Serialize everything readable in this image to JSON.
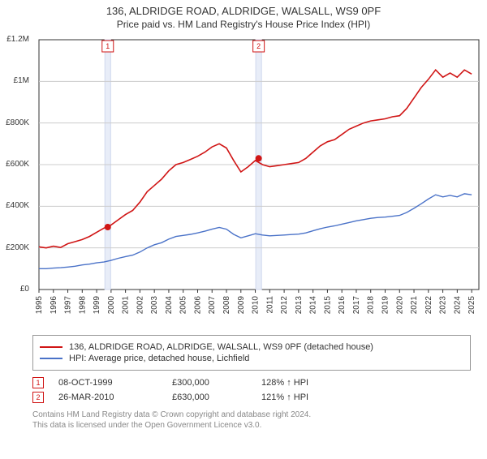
{
  "title": "136, ALDRIDGE ROAD, ALDRIDGE, WALSALL, WS9 0PF",
  "subtitle": "Price paid vs. HM Land Registry's House Price Index (HPI)",
  "chart": {
    "type": "line",
    "background_color": "#ffffff",
    "grid_color": "#cccccc",
    "x": {
      "min": 1995.0,
      "max": 2025.5,
      "ticks": [
        1995,
        1996,
        1997,
        1998,
        1999,
        2000,
        2001,
        2002,
        2003,
        2004,
        2005,
        2006,
        2007,
        2008,
        2009,
        2010,
        2011,
        2012,
        2013,
        2014,
        2015,
        2016,
        2017,
        2018,
        2019,
        2020,
        2021,
        2022,
        2023,
        2024,
        2025
      ],
      "tick_rotation": -90,
      "tick_fontsize": 10
    },
    "y": {
      "min": 0,
      "max": 1200000,
      "ticks": [
        0,
        200000,
        400000,
        600000,
        800000,
        1000000,
        1200000
      ],
      "tick_labels": [
        "£0",
        "£200K",
        "£400K",
        "£600K",
        "£800K",
        "£1M",
        "£1.2M"
      ],
      "tick_fontsize": 10
    },
    "vbands": [
      {
        "x": 1999.77,
        "color": "#e8edf8",
        "border": "#d0d8ee",
        "width_years": 0.4
      },
      {
        "x": 2010.23,
        "color": "#e8edf8",
        "border": "#d0d8ee",
        "width_years": 0.4
      }
    ],
    "marker_badges": [
      {
        "n": "1",
        "x": 1999.77,
        "y_top": true,
        "color": "#d01515"
      },
      {
        "n": "2",
        "x": 2010.23,
        "y_top": true,
        "color": "#d01515"
      }
    ],
    "sale_points": [
      {
        "x": 1999.77,
        "y": 300000,
        "color": "#d01515"
      },
      {
        "x": 2010.23,
        "y": 630000,
        "color": "#d01515"
      }
    ],
    "series": [
      {
        "name": "price_paid",
        "color": "#d01515",
        "line_width": 1.6,
        "data": [
          [
            1995.0,
            205000
          ],
          [
            1995.5,
            200000
          ],
          [
            1996.0,
            208000
          ],
          [
            1996.5,
            202000
          ],
          [
            1997.0,
            220000
          ],
          [
            1997.5,
            230000
          ],
          [
            1998.0,
            240000
          ],
          [
            1998.5,
            255000
          ],
          [
            1999.0,
            275000
          ],
          [
            1999.5,
            295000
          ],
          [
            2000.0,
            310000
          ],
          [
            2000.5,
            335000
          ],
          [
            2001.0,
            360000
          ],
          [
            2001.5,
            380000
          ],
          [
            2002.0,
            420000
          ],
          [
            2002.5,
            470000
          ],
          [
            2003.0,
            500000
          ],
          [
            2003.5,
            530000
          ],
          [
            2004.0,
            570000
          ],
          [
            2004.5,
            600000
          ],
          [
            2005.0,
            610000
          ],
          [
            2005.5,
            625000
          ],
          [
            2006.0,
            640000
          ],
          [
            2006.5,
            660000
          ],
          [
            2007.0,
            685000
          ],
          [
            2007.5,
            700000
          ],
          [
            2008.0,
            680000
          ],
          [
            2008.5,
            620000
          ],
          [
            2009.0,
            565000
          ],
          [
            2009.5,
            590000
          ],
          [
            2010.0,
            620000
          ],
          [
            2010.5,
            600000
          ],
          [
            2011.0,
            590000
          ],
          [
            2011.5,
            595000
          ],
          [
            2012.0,
            600000
          ],
          [
            2012.5,
            605000
          ],
          [
            2013.0,
            610000
          ],
          [
            2013.5,
            630000
          ],
          [
            2014.0,
            660000
          ],
          [
            2014.5,
            690000
          ],
          [
            2015.0,
            710000
          ],
          [
            2015.5,
            720000
          ],
          [
            2016.0,
            745000
          ],
          [
            2016.5,
            770000
          ],
          [
            2017.0,
            785000
          ],
          [
            2017.5,
            800000
          ],
          [
            2018.0,
            810000
          ],
          [
            2018.5,
            815000
          ],
          [
            2019.0,
            820000
          ],
          [
            2019.5,
            830000
          ],
          [
            2020.0,
            835000
          ],
          [
            2020.5,
            870000
          ],
          [
            2021.0,
            920000
          ],
          [
            2021.5,
            970000
          ],
          [
            2022.0,
            1010000
          ],
          [
            2022.5,
            1055000
          ],
          [
            2023.0,
            1020000
          ],
          [
            2023.5,
            1040000
          ],
          [
            2024.0,
            1020000
          ],
          [
            2024.5,
            1055000
          ],
          [
            2025.0,
            1035000
          ]
        ]
      },
      {
        "name": "hpi",
        "color": "#4a72c8",
        "line_width": 1.4,
        "data": [
          [
            1995.0,
            100000
          ],
          [
            1995.5,
            100000
          ],
          [
            1996.0,
            103000
          ],
          [
            1996.5,
            105000
          ],
          [
            1997.0,
            108000
          ],
          [
            1997.5,
            112000
          ],
          [
            1998.0,
            118000
          ],
          [
            1998.5,
            122000
          ],
          [
            1999.0,
            128000
          ],
          [
            1999.5,
            132000
          ],
          [
            2000.0,
            140000
          ],
          [
            2000.5,
            150000
          ],
          [
            2001.0,
            158000
          ],
          [
            2001.5,
            165000
          ],
          [
            2002.0,
            180000
          ],
          [
            2002.5,
            200000
          ],
          [
            2003.0,
            215000
          ],
          [
            2003.5,
            225000
          ],
          [
            2004.0,
            242000
          ],
          [
            2004.5,
            255000
          ],
          [
            2005.0,
            260000
          ],
          [
            2005.5,
            265000
          ],
          [
            2006.0,
            272000
          ],
          [
            2006.5,
            280000
          ],
          [
            2007.0,
            290000
          ],
          [
            2007.5,
            298000
          ],
          [
            2008.0,
            290000
          ],
          [
            2008.5,
            265000
          ],
          [
            2009.0,
            248000
          ],
          [
            2009.5,
            258000
          ],
          [
            2010.0,
            268000
          ],
          [
            2010.5,
            262000
          ],
          [
            2011.0,
            258000
          ],
          [
            2011.5,
            260000
          ],
          [
            2012.0,
            262000
          ],
          [
            2012.5,
            264000
          ],
          [
            2013.0,
            266000
          ],
          [
            2013.5,
            272000
          ],
          [
            2014.0,
            282000
          ],
          [
            2014.5,
            292000
          ],
          [
            2015.0,
            300000
          ],
          [
            2015.5,
            306000
          ],
          [
            2016.0,
            314000
          ],
          [
            2016.5,
            322000
          ],
          [
            2017.0,
            330000
          ],
          [
            2017.5,
            336000
          ],
          [
            2018.0,
            342000
          ],
          [
            2018.5,
            346000
          ],
          [
            2019.0,
            348000
          ],
          [
            2019.5,
            352000
          ],
          [
            2020.0,
            356000
          ],
          [
            2020.5,
            370000
          ],
          [
            2021.0,
            390000
          ],
          [
            2021.5,
            412000
          ],
          [
            2022.0,
            435000
          ],
          [
            2022.5,
            455000
          ],
          [
            2023.0,
            445000
          ],
          [
            2023.5,
            452000
          ],
          [
            2024.0,
            445000
          ],
          [
            2024.5,
            460000
          ],
          [
            2025.0,
            455000
          ]
        ]
      }
    ]
  },
  "legend": {
    "items": [
      {
        "color": "#d01515",
        "label": "136, ALDRIDGE ROAD, ALDRIDGE, WALSALL, WS9 0PF (detached house)"
      },
      {
        "color": "#4a72c8",
        "label": "HPI: Average price, detached house, Lichfield"
      }
    ]
  },
  "sales": [
    {
      "n": "1",
      "date": "08-OCT-1999",
      "price": "£300,000",
      "pct": "128% ↑ HPI",
      "badge_color": "#d01515"
    },
    {
      "n": "2",
      "date": "26-MAR-2010",
      "price": "£630,000",
      "pct": "121% ↑ HPI",
      "badge_color": "#d01515"
    }
  ],
  "footer": {
    "line1": "Contains HM Land Registry data © Crown copyright and database right 2024.",
    "line2": "This data is licensed under the Open Government Licence v3.0."
  }
}
